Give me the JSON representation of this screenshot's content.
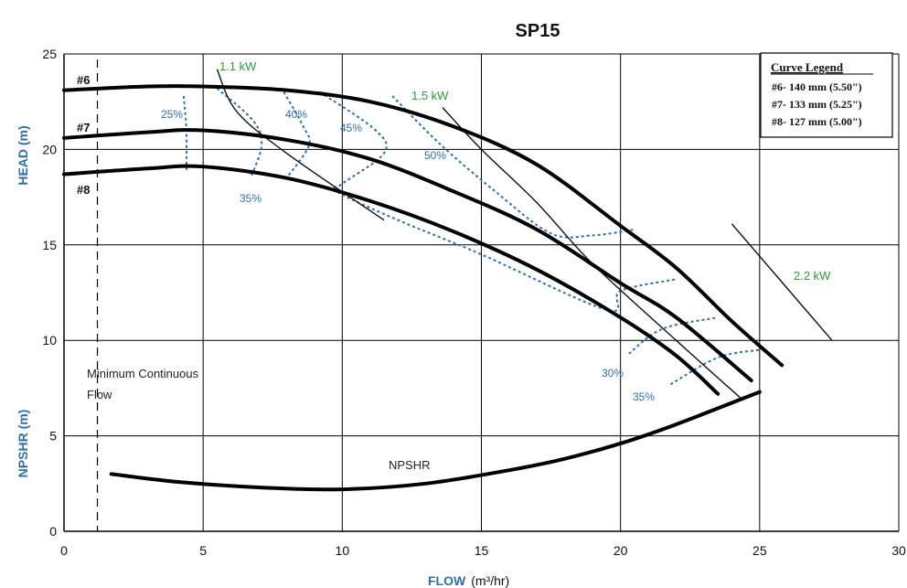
{
  "chart_data": {
    "type": "line",
    "title": "SP15",
    "xlabel": "FLOW",
    "xunit": "(m³/hr)",
    "ylabel_top": "HEAD (m)",
    "ylabel_bottom": "NPSHR (m)",
    "xlim": [
      0,
      30
    ],
    "ylim": [
      0,
      25
    ],
    "xticks": [
      "0",
      "5",
      "10",
      "15",
      "20",
      "25",
      "30"
    ],
    "yticks": [
      "0",
      "5",
      "10",
      "15",
      "20",
      "25"
    ],
    "grid": true,
    "legend_position": "top-right",
    "legend": {
      "title": "Curve Legend",
      "entries": [
        "#6- 140 mm (5.50\")",
        "#7- 133 mm (5.25\")",
        "#8- 127 mm (5.00\")"
      ]
    },
    "series": [
      {
        "name": "#6",
        "color": "#000000",
        "points": [
          [
            0,
            23.1
          ],
          [
            3,
            23.3
          ],
          [
            5,
            23.3
          ],
          [
            8,
            23.1
          ],
          [
            11,
            22.5
          ],
          [
            14,
            21.2
          ],
          [
            17,
            19.2
          ],
          [
            20,
            16.0
          ],
          [
            22,
            13.8
          ],
          [
            24,
            11.0
          ],
          [
            25.8,
            8.7
          ]
        ]
      },
      {
        "name": "#7",
        "color": "#000000",
        "points": [
          [
            0,
            20.6
          ],
          [
            3,
            20.9
          ],
          [
            5,
            21.0
          ],
          [
            8,
            20.5
          ],
          [
            11,
            19.5
          ],
          [
            14,
            17.8
          ],
          [
            17,
            15.8
          ],
          [
            20,
            13.0
          ],
          [
            22,
            11.2
          ],
          [
            24.7,
            7.9
          ]
        ]
      },
      {
        "name": "#8",
        "color": "#000000",
        "points": [
          [
            0,
            18.7
          ],
          [
            3,
            19.0
          ],
          [
            5,
            19.1
          ],
          [
            8,
            18.5
          ],
          [
            11,
            17.3
          ],
          [
            14,
            15.7
          ],
          [
            17,
            13.7
          ],
          [
            20,
            11.2
          ],
          [
            22,
            9.2
          ],
          [
            23.5,
            7.2
          ]
        ]
      },
      {
        "name": "NPSHR",
        "color": "#000000",
        "points": [
          [
            1.7,
            3.0
          ],
          [
            4,
            2.6
          ],
          [
            7,
            2.3
          ],
          [
            10,
            2.2
          ],
          [
            13,
            2.5
          ],
          [
            16,
            3.2
          ],
          [
            18,
            3.8
          ],
          [
            20,
            4.6
          ],
          [
            22,
            5.6
          ],
          [
            25,
            7.3
          ]
        ]
      }
    ],
    "power_lines": [
      {
        "label": "1.1 kW",
        "points": [
          [
            5.5,
            24.2
          ],
          [
            6.2,
            22.0
          ],
          [
            8,
            19.8
          ],
          [
            11.5,
            16.3
          ]
        ]
      },
      {
        "label": "1.5 kW",
        "points": [
          [
            13.6,
            22.2
          ],
          [
            15,
            20.0
          ],
          [
            17,
            17.2
          ],
          [
            19,
            14.0
          ],
          [
            22,
            10.0
          ],
          [
            24.3,
            7.0
          ]
        ]
      },
      {
        "label": "2.2 kW",
        "points": [
          [
            24,
            16.1
          ],
          [
            27.6,
            10.0
          ]
        ]
      }
    ],
    "efficiency_lines": [
      {
        "label": "25%",
        "points": [
          [
            4.3,
            22.8
          ],
          [
            4.4,
            21.0
          ],
          [
            4.4,
            18.9
          ]
        ]
      },
      {
        "label": "35%",
        "points": [
          [
            5.5,
            23.2
          ],
          [
            6.8,
            21.5
          ],
          [
            7.1,
            20.2
          ],
          [
            6.7,
            18.5
          ]
        ]
      },
      {
        "label": "40%",
        "points": [
          [
            7.9,
            23.0
          ],
          [
            8.6,
            21.2
          ],
          [
            8.8,
            20.2
          ],
          [
            8.0,
            18.5
          ]
        ]
      },
      {
        "label": "45%",
        "points": [
          [
            9.2,
            23.0
          ],
          [
            11.2,
            21.0
          ],
          [
            11.5,
            19.8
          ],
          [
            10.0,
            18.2
          ],
          [
            9.8,
            17.8
          ],
          [
            12,
            16.3
          ],
          [
            15,
            14.5
          ],
          [
            19.5,
            11.6
          ],
          [
            20,
            12.6
          ],
          [
            22.0,
            13.2
          ]
        ]
      },
      {
        "label": "50%",
        "points": [
          [
            11.8,
            22.8
          ],
          [
            13.5,
            20.3
          ],
          [
            15.5,
            17.8
          ],
          [
            17.5,
            15.6
          ],
          [
            19.0,
            15.5
          ],
          [
            20.5,
            15.8
          ]
        ]
      },
      {
        "label": "30%",
        "points": [
          [
            20.3,
            9.3
          ],
          [
            21.5,
            10.6
          ],
          [
            23.5,
            11.2
          ]
        ]
      },
      {
        "label": "35%",
        "points": [
          [
            21.8,
            7.7
          ],
          [
            23.5,
            9.1
          ],
          [
            25,
            9.5
          ]
        ]
      }
    ],
    "labels": {
      "curve_6": "#6",
      "curve_7": "#7",
      "curve_8": "#8",
      "kw_11": "1.1 kW",
      "kw_15": "1.5 kW",
      "kw_22": "2.2 kW",
      "eff_25": "25%",
      "eff_35_top": "35%",
      "eff_40": "40%",
      "eff_45": "45%",
      "eff_50": "50%",
      "eff_30_low": "30%",
      "eff_35_low": "35%",
      "npshr": "NPSHR",
      "min_flow_1": "Minimum Continuous",
      "min_flow_2": "Flow"
    },
    "min_continuous_flow": 1.2
  }
}
